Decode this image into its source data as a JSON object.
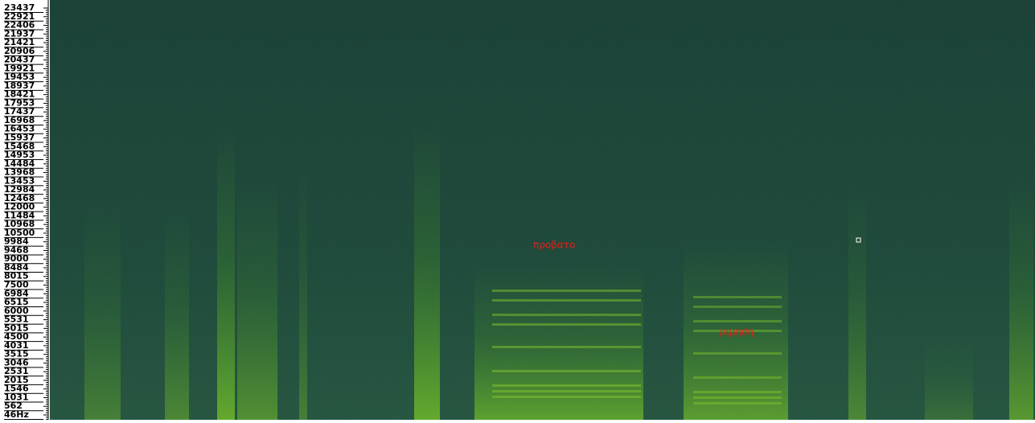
{
  "frequency_scale": {
    "labels": [
      "23437",
      "22921",
      "22406",
      "21937",
      "21421",
      "20906",
      "20437",
      "19921",
      "19453",
      "18937",
      "18421",
      "17953",
      "17437",
      "16968",
      "16453",
      "15937",
      "15468",
      "14953",
      "14484",
      "13968",
      "13453",
      "12984",
      "12468",
      "12000",
      "11484",
      "10968",
      "10500",
      "9984",
      "9468",
      "9000",
      "8484",
      "8015",
      "7500",
      "6984",
      "6515",
      "6000",
      "5531",
      "5015",
      "4500",
      "4031",
      "3515",
      "3046",
      "2531",
      "2015",
      "1546",
      "1031",
      "562",
      "46Hz"
    ]
  },
  "annotations": [
    "προβατο",
    "μιμηση"
  ]
}
